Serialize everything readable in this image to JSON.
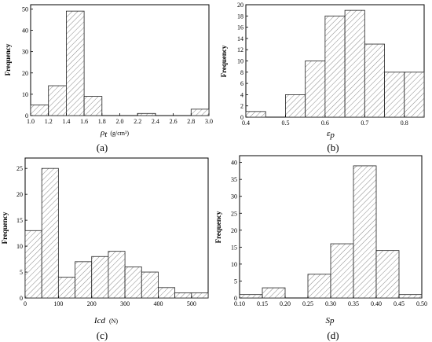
{
  "chart_data": [
    {
      "type": "bar",
      "panel_caption": "(a)",
      "xlabel_symbol": "ρ",
      "xlabel_sub": "t",
      "xlabel_unit": "(g/cm³)",
      "ylabel": "Frequency",
      "xlim": [
        1.0,
        3.0
      ],
      "ylim": [
        0,
        52
      ],
      "xticks": [
        "1.0",
        "1.2",
        "1.4",
        "1.6",
        "1.8",
        "2.0",
        "2.2",
        "2.4",
        "2.6",
        "2.8",
        "3.0"
      ],
      "yticks": [
        "0",
        "10",
        "20",
        "30",
        "40",
        "50"
      ],
      "bin_width": 0.2,
      "bins_start": [
        1.0,
        1.2,
        1.4,
        1.6,
        2.2,
        2.8
      ],
      "values": [
        5,
        14,
        49,
        9,
        1,
        3
      ]
    },
    {
      "type": "bar",
      "panel_caption": "(b)",
      "xlabel_symbol": "ε",
      "xlabel_sub": "p",
      "ylabel": "Frequency",
      "xlim": [
        0.4,
        0.85
      ],
      "ylim": [
        0,
        20
      ],
      "xticks": [
        "0.4",
        "0.5",
        "0.6",
        "0.7",
        "0.8"
      ],
      "yticks": [
        "0",
        "2",
        "4",
        "6",
        "8",
        "10",
        "12",
        "14",
        "16",
        "18",
        "20"
      ],
      "bin_width": 0.05,
      "bins_start": [
        0.4,
        0.5,
        0.55,
        0.6,
        0.65,
        0.7,
        0.75,
        0.8
      ],
      "values": [
        1,
        4,
        10,
        18,
        19,
        13,
        8,
        8
      ]
    },
    {
      "type": "bar",
      "panel_caption": "(c)",
      "xlabel_symbol": "Icd",
      "xlabel_unit": "(N)",
      "ylabel": "Frequency",
      "xlim": [
        0,
        550
      ],
      "ylim": [
        0,
        27
      ],
      "xticks": [
        "0",
        "100",
        "200",
        "300",
        "400",
        "500"
      ],
      "yticks": [
        "0",
        "5",
        "10",
        "15",
        "20",
        "25"
      ],
      "bin_width": 50,
      "bins_start": [
        0,
        50,
        100,
        150,
        200,
        250,
        300,
        350,
        400,
        450,
        500
      ],
      "values": [
        13,
        25,
        4,
        7,
        8,
        9,
        6,
        5,
        2,
        1,
        1
      ]
    },
    {
      "type": "bar",
      "panel_caption": "(d)",
      "xlabel_symbol": "Sp",
      "ylabel": "Frequency",
      "xlim": [
        0.1,
        0.5
      ],
      "ylim": [
        0,
        42
      ],
      "xticks": [
        "0.10",
        "0.15",
        "0.20",
        "0.25",
        "0.30",
        "0.35",
        "0.40",
        "0.45",
        "0.50"
      ],
      "yticks": [
        "0",
        "5",
        "10",
        "15",
        "20",
        "25",
        "30",
        "35",
        "40"
      ],
      "bin_width": 0.05,
      "bins_start": [
        0.1,
        0.15,
        0.25,
        0.3,
        0.35,
        0.4,
        0.45
      ],
      "values": [
        1,
        3,
        7,
        16,
        39,
        14,
        1
      ]
    }
  ]
}
